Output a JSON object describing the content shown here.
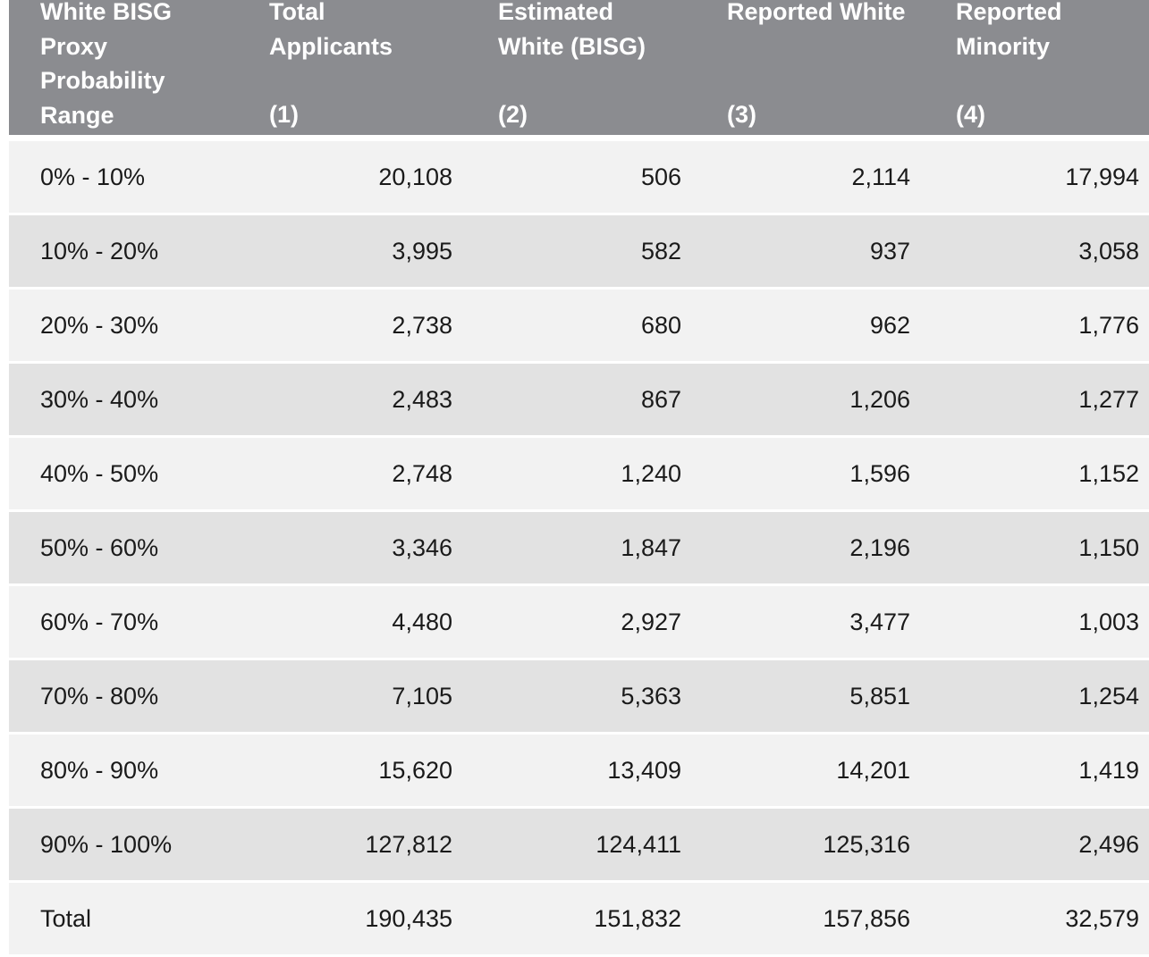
{
  "header": {
    "columns": [
      {
        "title": "White BISG\nProxy\nProbability\nRange",
        "number": ""
      },
      {
        "title": "Total\nApplicants",
        "number": "(1)"
      },
      {
        "title": "Estimated\nWhite (BISG)",
        "number": "(2)"
      },
      {
        "title": "Reported White",
        "number": "(3)"
      },
      {
        "title": "Reported\nMinority",
        "number": "(4)"
      }
    ]
  },
  "rows": [
    {
      "range": "0% - 10%",
      "total": "20,108",
      "estimated": "506",
      "white": "2,114",
      "minority": "17,994"
    },
    {
      "range": "10% - 20%",
      "total": "3,995",
      "estimated": "582",
      "white": "937",
      "minority": "3,058"
    },
    {
      "range": "20% - 30%",
      "total": "2,738",
      "estimated": "680",
      "white": "962",
      "minority": "1,776"
    },
    {
      "range": "30% - 40%",
      "total": "2,483",
      "estimated": "867",
      "white": "1,206",
      "minority": "1,277"
    },
    {
      "range": "40% - 50%",
      "total": "2,748",
      "estimated": "1,240",
      "white": "1,596",
      "minority": "1,152"
    },
    {
      "range": "50% - 60%",
      "total": "3,346",
      "estimated": "1,847",
      "white": "2,196",
      "minority": "1,150"
    },
    {
      "range": "60% - 70%",
      "total": "4,480",
      "estimated": "2,927",
      "white": "3,477",
      "minority": "1,003"
    },
    {
      "range": "70% - 80%",
      "total": "7,105",
      "estimated": "5,363",
      "white": "5,851",
      "minority": "1,254"
    },
    {
      "range": "80% - 90%",
      "total": "15,620",
      "estimated": "13,409",
      "white": "14,201",
      "minority": "1,419"
    },
    {
      "range": "90% - 100%",
      "total": "127,812",
      "estimated": "124,411",
      "white": "125,316",
      "minority": "2,496"
    },
    {
      "range": "Total",
      "total": "190,435",
      "estimated": "151,832",
      "white": "157,856",
      "minority": "32,579"
    }
  ]
}
